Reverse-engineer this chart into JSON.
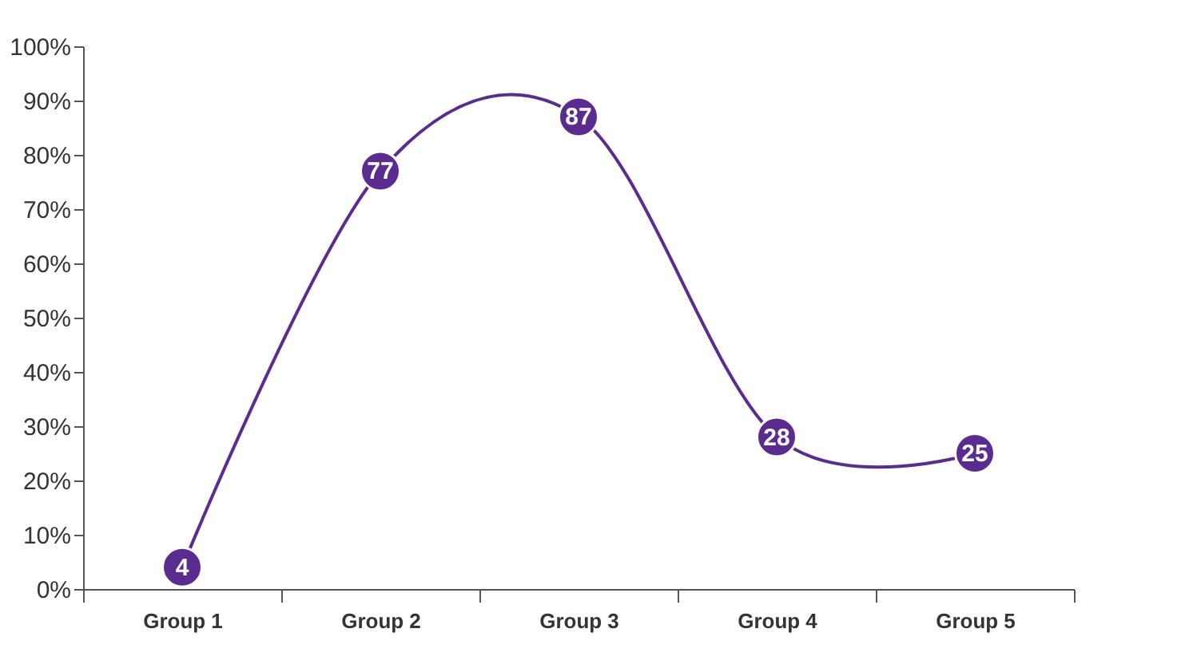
{
  "chart_data": {
    "type": "line",
    "categories": [
      "Group 1",
      "Group 2",
      "Group 3",
      "Group 4",
      "Group 5"
    ],
    "series": [
      {
        "color": "#5b2c8f",
        "values": [
          4,
          77,
          87,
          28,
          25
        ]
      }
    ],
    "ylim": [
      0,
      100
    ],
    "yticks": [
      {
        "value": 0,
        "label": "0%"
      },
      {
        "value": 10,
        "label": "10%"
      },
      {
        "value": 20,
        "label": "20%"
      },
      {
        "value": 30,
        "label": "30%"
      },
      {
        "value": 40,
        "label": "40%"
      },
      {
        "value": 50,
        "label": "50%"
      },
      {
        "value": 60,
        "label": "60%"
      },
      {
        "value": 70,
        "label": "70%"
      },
      {
        "value": 80,
        "label": "80%"
      },
      {
        "value": 90,
        "label": "90%"
      },
      {
        "value": 100,
        "label": "100%"
      }
    ],
    "data_labels": true,
    "marker": "circle",
    "line_style": "solid"
  }
}
